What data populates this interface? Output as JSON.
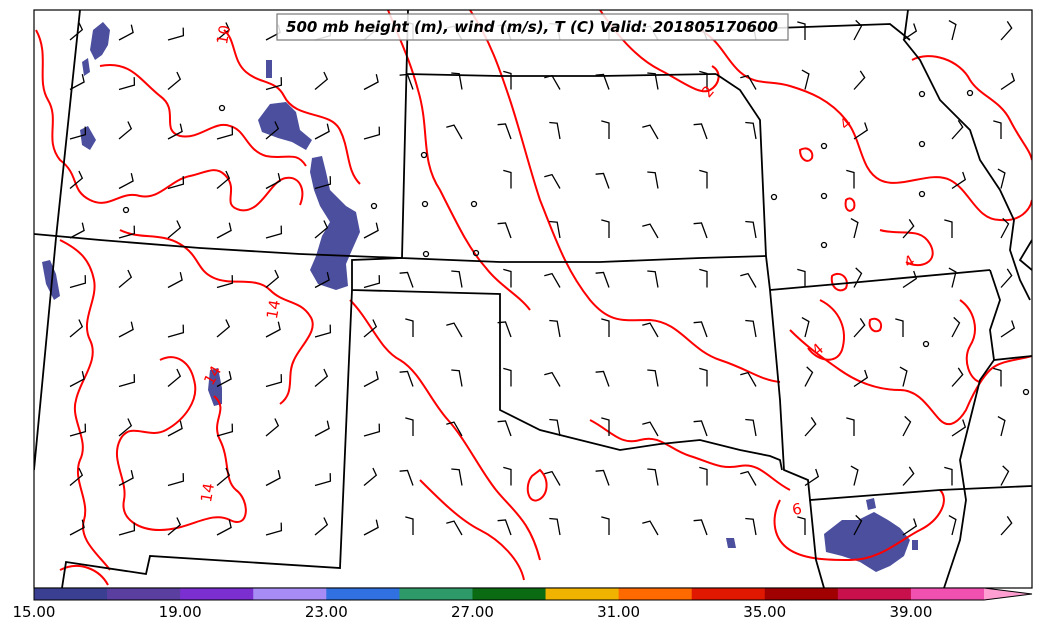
{
  "title": "500 mb height (m), wind (m/s), T (C) Valid: 201805170600",
  "colorbar": {
    "ticks": [
      "15.00",
      "19.00",
      "23.00",
      "27.00",
      "31.00",
      "35.00",
      "39.00"
    ],
    "colors": [
      "#3b3f91",
      "#5a3fa0",
      "#7b2fd0",
      "#a88cf5",
      "#3070e0",
      "#2e9a6a",
      "#0a6b12",
      "#f0b400",
      "#ff6a00",
      "#e01800",
      "#a00000",
      "#c8104c",
      "#f050b0",
      "#ff9ed0"
    ]
  },
  "contour_labels": {
    "t10": "10",
    "t14a": "14",
    "t14b": "14",
    "t14c": "14",
    "t4a": "4",
    "t4b": "4",
    "t4c": "4",
    "t6": "6",
    "t2": "2"
  },
  "contour_color": "#ff0000",
  "shading_color": "#4b4f9e",
  "boundary_color": "#000000"
}
